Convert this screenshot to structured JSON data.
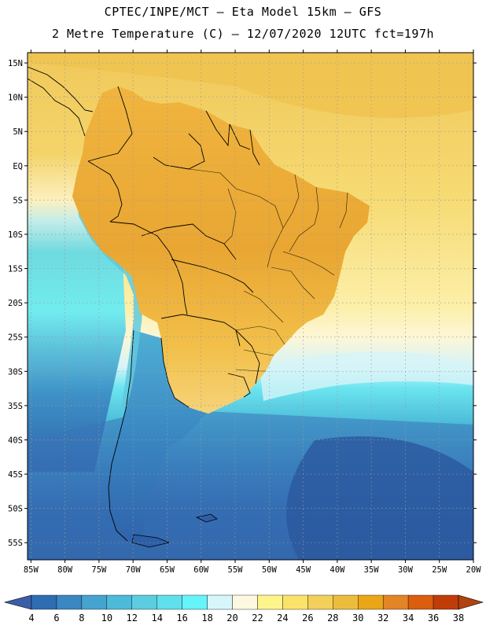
{
  "header": {
    "title_line1": "CPTEC/INPE/MCT –  Eta Model 15km – GFS",
    "title_line2": "2 Metre Temperature (C) – 12/07/2020 12UTC fct=197h"
  },
  "map": {
    "lat_labels": [
      "15N",
      "10N",
      "5N",
      "EQ",
      "5S",
      "10S",
      "15S",
      "20S",
      "25S",
      "30S",
      "35S",
      "40S",
      "45S",
      "50S",
      "55S"
    ],
    "lat_values": [
      15,
      10,
      5,
      0,
      -5,
      -10,
      -15,
      -20,
      -25,
      -30,
      -35,
      -40,
      -45,
      -50,
      -55
    ],
    "lon_labels": [
      "85W",
      "80W",
      "75W",
      "70W",
      "65W",
      "60W",
      "55W",
      "50W",
      "45W",
      "40W",
      "35W",
      "30W",
      "25W",
      "20W"
    ],
    "lon_values": [
      -85,
      -80,
      -75,
      -70,
      -65,
      -60,
      -55,
      -50,
      -45,
      -40,
      -35,
      -30,
      -25,
      -20
    ],
    "extent": {
      "lon_min": -85.5,
      "lon_max": -20,
      "lat_min": -57.5,
      "lat_max": 16.5
    }
  },
  "colorbar": {
    "labels": [
      "4",
      "6",
      "8",
      "10",
      "12",
      "14",
      "16",
      "18",
      "20",
      "22",
      "24",
      "26",
      "28",
      "30",
      "32",
      "34",
      "36",
      "38"
    ],
    "colors": [
      "#3a5fa8",
      "#2f6db2",
      "#3a87c2",
      "#45a4cf",
      "#4dbad9",
      "#5ccde0",
      "#5fe0ec",
      "#64f4fa",
      "#d6f6fb",
      "#fdf8e0",
      "#fdf58c",
      "#fbe36b",
      "#f3d05a",
      "#ecbd3d",
      "#eaa616",
      "#e38425",
      "#db5d0e",
      "#c13d08",
      "#b0430f"
    ]
  },
  "colors": {
    "ocean_north_warm": "#f3cd5a",
    "land_hot": "#ecac35",
    "ocean_south_cold": "#2f5fa5",
    "border": "#000000"
  }
}
